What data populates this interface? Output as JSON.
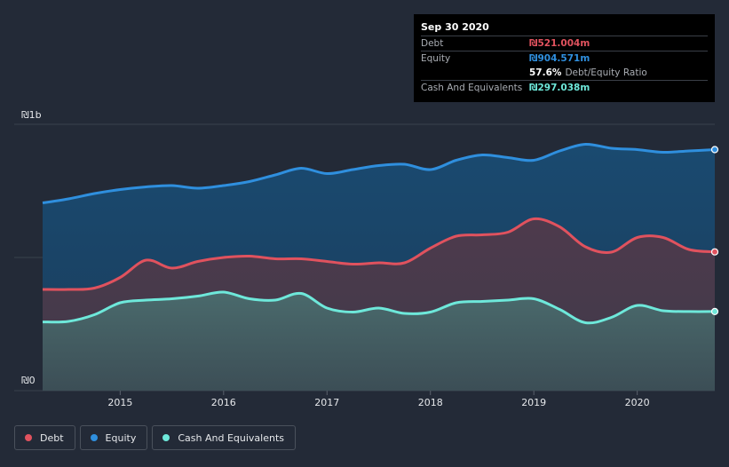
{
  "tooltip": {
    "date": "Sep 30 2020",
    "debt_label": "Debt",
    "debt_value": "₪521.004m",
    "equity_label": "Equity",
    "equity_value": "₪904.571m",
    "ratio_value": "57.6%",
    "ratio_label": "Debt/Equity Ratio",
    "cash_label": "Cash And Equivalents",
    "cash_value": "₪297.038m"
  },
  "legend": {
    "debt": "Debt",
    "equity": "Equity",
    "cash": "Cash And Equivalents"
  },
  "colors": {
    "background": "#232a37",
    "debt": "#e0525e",
    "equity": "#2f8fde",
    "cash": "#6ee8da"
  },
  "chart_data": {
    "type": "area",
    "ylabel_top": "₪1b",
    "ylabel_bottom": "₪0",
    "ylim": [
      0,
      1000
    ],
    "xlim": [
      2014.25,
      2020.75
    ],
    "x_ticks": [
      2015,
      2016,
      2017,
      2018,
      2019,
      2020
    ],
    "x_tick_labels": [
      "2015",
      "2016",
      "2017",
      "2018",
      "2019",
      "2020"
    ],
    "series": [
      {
        "name": "Equity",
        "color": "#2f8fde",
        "x": [
          2014.25,
          2014.5,
          2014.75,
          2015.0,
          2015.25,
          2015.5,
          2015.75,
          2016.0,
          2016.25,
          2016.5,
          2016.75,
          2017.0,
          2017.25,
          2017.5,
          2017.75,
          2018.0,
          2018.25,
          2018.5,
          2018.75,
          2019.0,
          2019.25,
          2019.5,
          2019.75,
          2020.0,
          2020.25,
          2020.5,
          2020.75
        ],
        "y": [
          705,
          720,
          740,
          755,
          765,
          770,
          760,
          770,
          785,
          810,
          835,
          815,
          830,
          845,
          850,
          830,
          865,
          885,
          875,
          865,
          900,
          925,
          910,
          905,
          895,
          900,
          905
        ]
      },
      {
        "name": "Debt",
        "color": "#e0525e",
        "x": [
          2014.25,
          2014.5,
          2014.75,
          2015.0,
          2015.25,
          2015.5,
          2015.75,
          2016.0,
          2016.25,
          2016.5,
          2016.75,
          2017.0,
          2017.25,
          2017.5,
          2017.75,
          2018.0,
          2018.25,
          2018.5,
          2018.75,
          2019.0,
          2019.25,
          2019.5,
          2019.75,
          2020.0,
          2020.25,
          2020.5,
          2020.75
        ],
        "y": [
          380,
          380,
          385,
          425,
          490,
          460,
          485,
          500,
          505,
          495,
          495,
          485,
          475,
          480,
          480,
          535,
          580,
          585,
          595,
          645,
          615,
          540,
          520,
          575,
          575,
          530,
          521
        ]
      },
      {
        "name": "Cash And Equivalents",
        "color": "#6ee8da",
        "x": [
          2014.25,
          2014.5,
          2014.75,
          2015.0,
          2015.25,
          2015.5,
          2015.75,
          2016.0,
          2016.25,
          2016.5,
          2016.75,
          2017.0,
          2017.25,
          2017.5,
          2017.75,
          2018.0,
          2018.25,
          2018.5,
          2018.75,
          2019.0,
          2019.25,
          2019.5,
          2019.75,
          2020.0,
          2020.25,
          2020.5,
          2020.75
        ],
        "y": [
          258,
          260,
          285,
          330,
          340,
          345,
          355,
          370,
          345,
          340,
          365,
          310,
          295,
          310,
          290,
          295,
          330,
          335,
          340,
          345,
          305,
          255,
          275,
          320,
          300,
          297,
          297
        ]
      }
    ]
  }
}
